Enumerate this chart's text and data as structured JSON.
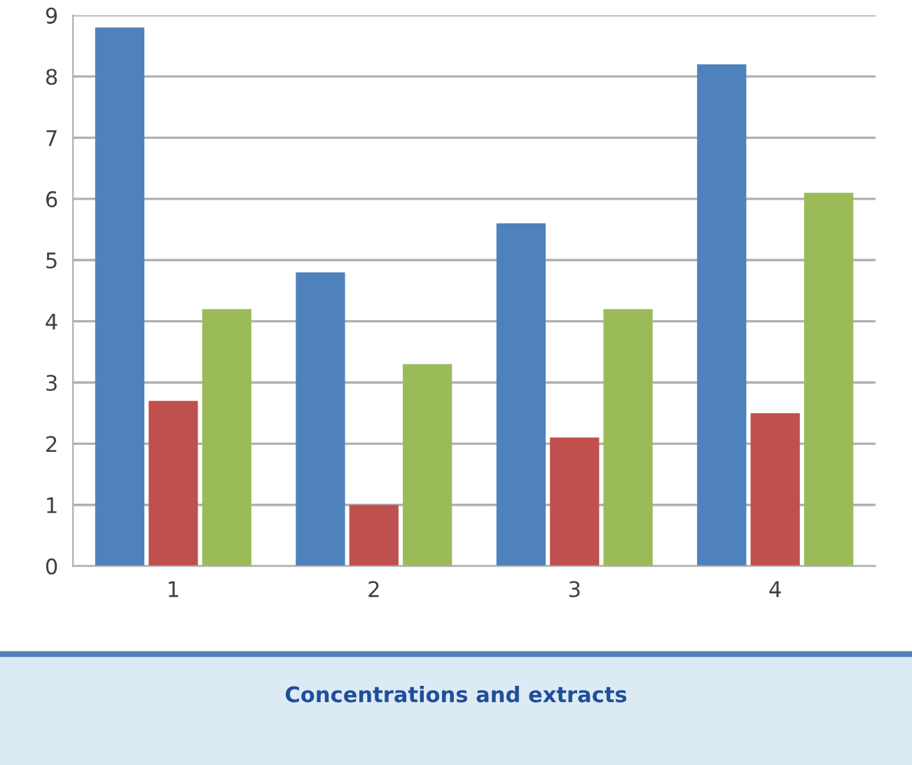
{
  "chart_data": {
    "type": "bar",
    "xlabel": "Concentrations and extracts",
    "categories": [
      "1",
      "2",
      "3",
      "4"
    ],
    "series": [
      {
        "color": "#4f81bd",
        "values": [
          8.8,
          4.8,
          5.6,
          8.2
        ]
      },
      {
        "color": "#c0504d",
        "values": [
          2.7,
          1.0,
          2.1,
          2.5
        ]
      },
      {
        "color": "#9bbb59",
        "values": [
          4.2,
          3.3,
          4.2,
          6.1
        ]
      }
    ],
    "ylim": [
      0,
      9
    ],
    "yticks": [
      0,
      1,
      2,
      3,
      4,
      5,
      6,
      7,
      8,
      9
    ],
    "grid": "y",
    "legend": false
  }
}
